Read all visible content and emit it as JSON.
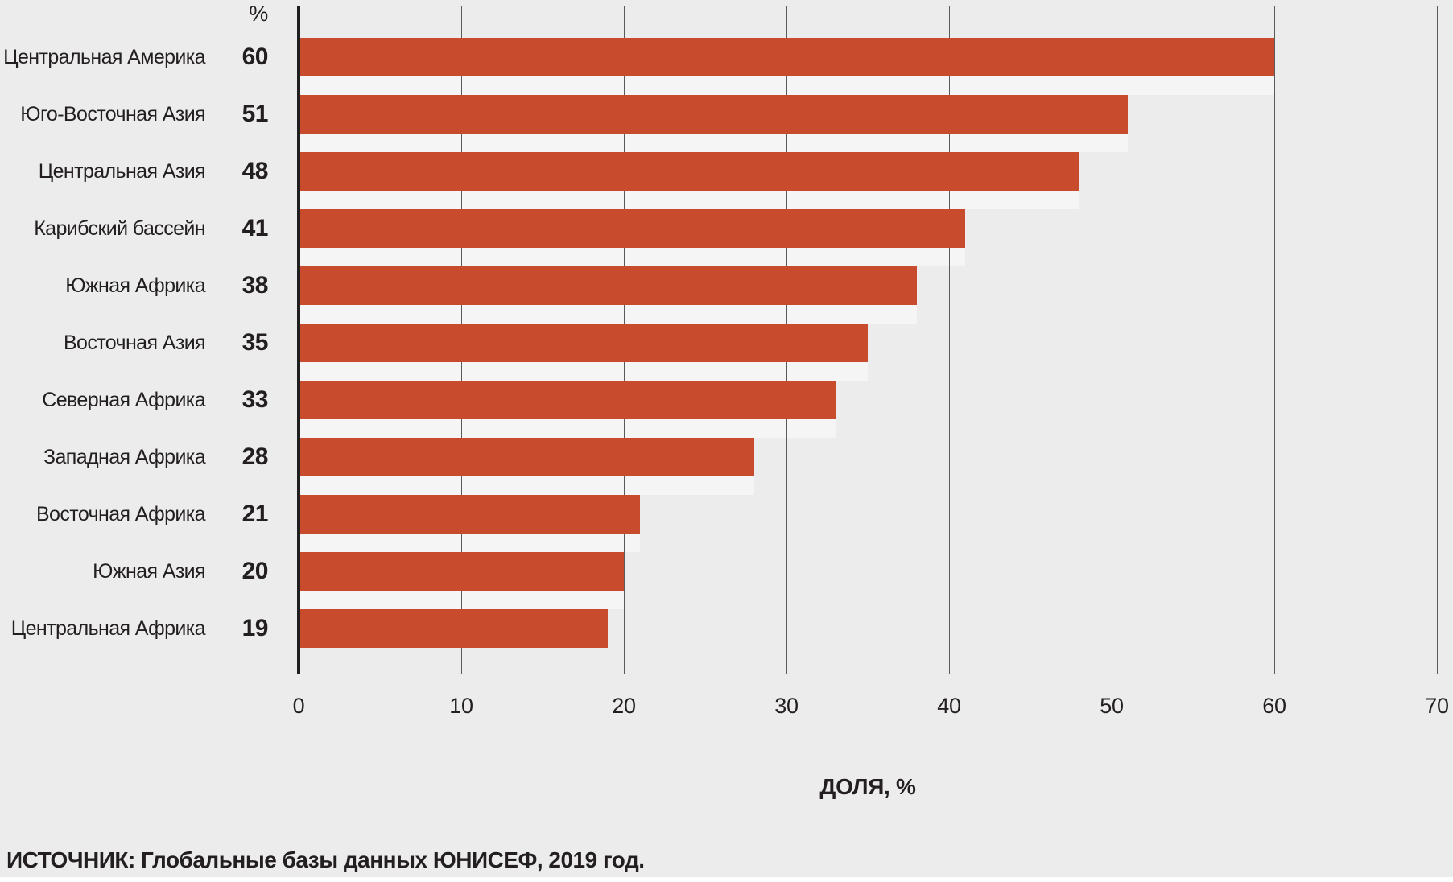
{
  "chart_data": {
    "type": "bar",
    "orientation": "horizontal",
    "title": "",
    "unit_header": "%",
    "categories": [
      "Центральная Америка",
      "Юго-Восточная Азия",
      "Центральная Азия",
      "Карибский бассейн",
      "Южная Африка",
      "Восточная Азия",
      "Северная Африка",
      "Западная Африка",
      "Восточная Африка",
      "Южная Азия",
      "Центральная Африка"
    ],
    "values": [
      60,
      51,
      48,
      41,
      38,
      35,
      33,
      28,
      21,
      20,
      19
    ],
    "xlabel": "ДОЛЯ, %",
    "ylabel": "",
    "x_ticks": [
      0,
      10,
      20,
      30,
      40,
      50,
      60,
      70
    ],
    "xlim": [
      0,
      70
    ],
    "grid": true,
    "legend": false,
    "bar_color": "#C74B2C",
    "background_color": "#ECECEC",
    "gap_strip_color": "#F5F5F5",
    "gridline_color": "#5A5A5A",
    "axis_color": "#1F1F1F",
    "text_color": "#231F20"
  },
  "source_note": "ИСТОЧНИК: Глобальные базы данных ЮНИСЕФ, 2019 год."
}
